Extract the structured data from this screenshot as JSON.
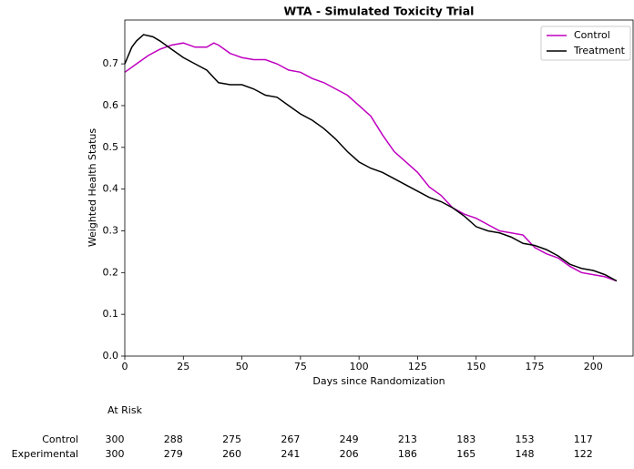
{
  "chart_data": {
    "type": "line",
    "title": "WTA - Simulated Toxicity Trial",
    "xlabel": "Days since Randomization",
    "ylabel": "Weighted Health Status",
    "xlim": [
      0,
      217
    ],
    "ylim": [
      0,
      0.805
    ],
    "xticks": [
      0,
      25,
      50,
      75,
      100,
      125,
      150,
      175,
      200
    ],
    "yticks": [
      {
        "value": 0,
        "label": "0.0"
      },
      0.1,
      0.2,
      0.3,
      0.4,
      0.5,
      0.6,
      0.7
    ],
    "legend": "upper right",
    "series": [
      {
        "name": "Control",
        "color": "#bf00bf",
        "x": [
          0,
          5,
          10,
          15,
          20,
          25,
          30,
          35,
          38,
          40,
          45,
          50,
          55,
          60,
          65,
          70,
          75,
          80,
          85,
          90,
          95,
          100,
          105,
          110,
          115,
          120,
          125,
          130,
          135,
          140,
          145,
          150,
          155,
          160,
          165,
          170,
          175,
          180,
          185,
          190,
          195,
          200,
          205,
          210
        ],
        "values": [
          0.68,
          0.7,
          0.72,
          0.735,
          0.745,
          0.75,
          0.74,
          0.74,
          0.75,
          0.745,
          0.725,
          0.715,
          0.71,
          0.71,
          0.7,
          0.685,
          0.68,
          0.665,
          0.655,
          0.64,
          0.625,
          0.6,
          0.575,
          0.53,
          0.49,
          0.465,
          0.44,
          0.405,
          0.385,
          0.355,
          0.34,
          0.33,
          0.315,
          0.3,
          0.295,
          0.29,
          0.26,
          0.245,
          0.235,
          0.215,
          0.2,
          0.195,
          0.19,
          0.18
        ]
      },
      {
        "name": "Treatment",
        "color": "#000000",
        "x": [
          0,
          3,
          5,
          8,
          12,
          15,
          20,
          25,
          30,
          35,
          40,
          45,
          50,
          55,
          60,
          65,
          70,
          75,
          80,
          85,
          90,
          95,
          100,
          105,
          110,
          115,
          120,
          125,
          130,
          135,
          140,
          145,
          150,
          155,
          160,
          165,
          170,
          175,
          180,
          185,
          190,
          195,
          200,
          205,
          210
        ],
        "values": [
          0.7,
          0.74,
          0.755,
          0.77,
          0.765,
          0.755,
          0.735,
          0.715,
          0.7,
          0.685,
          0.655,
          0.65,
          0.65,
          0.64,
          0.625,
          0.62,
          0.6,
          0.58,
          0.565,
          0.545,
          0.52,
          0.49,
          0.465,
          0.45,
          0.44,
          0.425,
          0.41,
          0.395,
          0.38,
          0.37,
          0.355,
          0.335,
          0.31,
          0.3,
          0.295,
          0.285,
          0.27,
          0.265,
          0.255,
          0.24,
          0.22,
          0.21,
          0.205,
          0.195,
          0.18
        ]
      }
    ],
    "at_risk": {
      "label": "At Risk",
      "rows": [
        {
          "name": "Control",
          "values": [
            300,
            288,
            275,
            267,
            249,
            213,
            183,
            153,
            117
          ]
        },
        {
          "name": "Experimental",
          "values": [
            300,
            279,
            260,
            241,
            206,
            186,
            165,
            148,
            122
          ]
        }
      ]
    }
  }
}
